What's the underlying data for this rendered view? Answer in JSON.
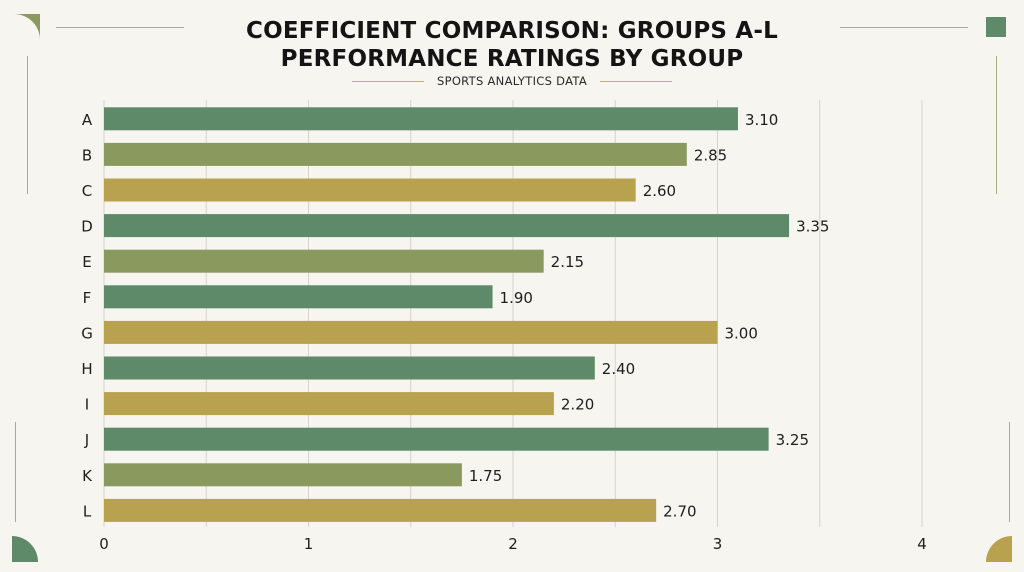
{
  "header": {
    "title_line1": "COEFFICIENT COMPARISON: GROUPS A-L",
    "title_line2": "PERFORMANCE RATINGS BY GROUP",
    "subtitle": "SPORTS ANALYTICS DATA"
  },
  "colors": {
    "green": "#5f8a69",
    "olive": "#8a9a5e",
    "gold": "#b9a24f",
    "grid": "#d6d4cc",
    "text": "#1e1e1e"
  },
  "chart_data": {
    "type": "bar",
    "orientation": "horizontal",
    "title": "COEFFICIENT COMPARISON: GROUPS A-L PERFORMANCE RATINGS BY GROUP",
    "subtitle": "SPORTS ANALYTICS DATA",
    "categories": [
      "A",
      "B",
      "C",
      "D",
      "E",
      "F",
      "G",
      "H",
      "I",
      "J",
      "K",
      "L"
    ],
    "values": [
      3.1,
      2.85,
      2.6,
      3.35,
      2.15,
      1.9,
      3.0,
      2.4,
      2.2,
      3.25,
      1.75,
      2.7
    ],
    "value_labels": [
      "3.10",
      "2.85",
      "2.60",
      "3.35",
      "2.15",
      "1.90",
      "3.00",
      "2.40",
      "2.20",
      "3.25",
      "1.75",
      "2.70"
    ],
    "bar_colors": [
      "green",
      "olive",
      "gold",
      "green",
      "olive",
      "green",
      "gold",
      "green",
      "gold",
      "green",
      "olive",
      "gold"
    ],
    "xlim": [
      0,
      4
    ],
    "xticks": [
      0,
      1,
      2,
      3,
      4
    ],
    "xtick_labels": [
      "0",
      "1",
      "2",
      "3",
      "4"
    ],
    "grid": true,
    "xlabel": "",
    "ylabel": ""
  }
}
